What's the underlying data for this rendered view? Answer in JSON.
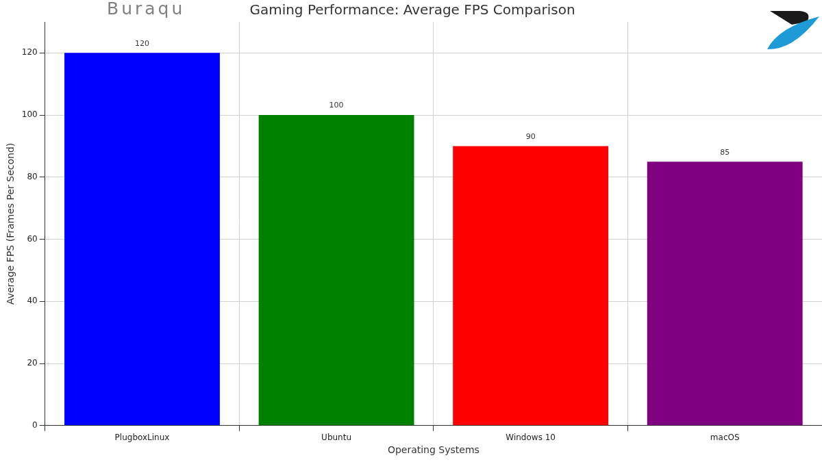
{
  "chart_data": {
    "type": "bar",
    "title": "Gaming Performance: Average FPS Comparison",
    "annotations": [
      "Buraqu"
    ],
    "x_label": "Operating Systems",
    "y_label": "Average FPS (Frames Per Second)",
    "categories": [
      "PlugboxLinux",
      "Ubuntu",
      "Windows 10",
      "macOS"
    ],
    "values": [
      120,
      100,
      90,
      85
    ],
    "colors": [
      "#0000ff",
      "#008000",
      "#ff0000",
      "#800080"
    ],
    "ylim": [
      0,
      130
    ],
    "yticks": [
      0,
      20,
      40,
      60,
      80,
      100,
      120
    ],
    "grid": true,
    "data_labels": true
  }
}
